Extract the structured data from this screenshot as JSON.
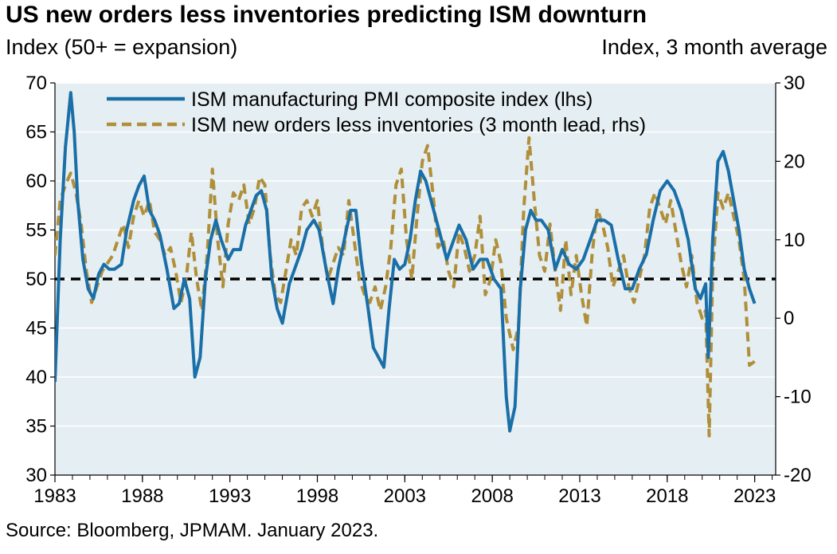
{
  "title": "US new orders less inventories predicting ISM downturn",
  "subtitle_left": "Index (50+ = expansion)",
  "subtitle_right": "Index, 3 month average",
  "source": "Source: Bloomberg, JPMAM. January 2023.",
  "colors": {
    "plot_bg": "#e5eef2",
    "grid": "#ffffff",
    "pmi": "#1a6fa8",
    "noi": "#b08f3a",
    "ref": "#000000"
  },
  "chart_data": {
    "type": "line",
    "x_start_year": 1983,
    "x_end_year": 2023,
    "xlim": [
      1983,
      2024.2
    ],
    "x_ticks": [
      "1983",
      "1988",
      "1993",
      "1998",
      "2003",
      "2008",
      "2013",
      "2018",
      "2023"
    ],
    "ylim_left": [
      30,
      70
    ],
    "y_ticks_left": [
      "30",
      "35",
      "40",
      "45",
      "50",
      "55",
      "60",
      "65",
      "70"
    ],
    "ylim_right": [
      -20,
      30
    ],
    "y_ticks_right": [
      "-20",
      "-10",
      "0",
      "10",
      "20",
      "30"
    ],
    "grid": true,
    "legend": "top",
    "reference_line": {
      "axis": "left",
      "value": 50,
      "style": "dashed"
    },
    "series": [
      {
        "name": "ISM manufacturing PMI composite index (lhs)",
        "axis": "left",
        "style": "solid",
        "x": [
          1983.0,
          1983.3,
          1983.6,
          1983.9,
          1984.1,
          1984.3,
          1984.6,
          1984.9,
          1985.2,
          1985.5,
          1985.8,
          1986.1,
          1986.4,
          1986.8,
          1987.1,
          1987.5,
          1987.8,
          1988.1,
          1988.4,
          1988.7,
          1989.0,
          1989.4,
          1989.8,
          1990.1,
          1990.4,
          1990.7,
          1991.0,
          1991.3,
          1991.6,
          1991.9,
          1992.2,
          1992.5,
          1992.9,
          1993.2,
          1993.6,
          1993.9,
          1994.2,
          1994.5,
          1994.8,
          1995.1,
          1995.4,
          1995.7,
          1996.0,
          1996.4,
          1996.8,
          1997.1,
          1997.4,
          1997.8,
          1998.1,
          1998.5,
          1998.9,
          1999.2,
          1999.6,
          1999.9,
          2000.2,
          2000.5,
          2000.9,
          2001.2,
          2001.5,
          2001.8,
          2002.1,
          2002.4,
          2002.7,
          2003.0,
          2003.3,
          2003.6,
          2003.9,
          2004.2,
          2004.5,
          2004.8,
          2005.1,
          2005.4,
          2005.8,
          2006.1,
          2006.5,
          2006.9,
          2007.3,
          2007.7,
          2008.1,
          2008.5,
          2008.8,
          2009.0,
          2009.3,
          2009.6,
          2009.9,
          2010.2,
          2010.5,
          2010.8,
          2011.2,
          2011.6,
          2012.0,
          2012.4,
          2012.8,
          2013.2,
          2013.6,
          2014.0,
          2014.4,
          2014.8,
          2015.2,
          2015.6,
          2016.0,
          2016.4,
          2016.8,
          2017.2,
          2017.6,
          2018.0,
          2018.4,
          2018.8,
          2019.2,
          2019.6,
          2019.9,
          2020.2,
          2020.35,
          2020.6,
          2020.9,
          2021.2,
          2021.5,
          2021.8,
          2022.1,
          2022.4,
          2022.7,
          2023.0
        ],
        "y": [
          39.5,
          54,
          63.5,
          69,
          65,
          58,
          52,
          49,
          48,
          50.5,
          51.5,
          51,
          51,
          51.5,
          55,
          58,
          59.5,
          60.5,
          57,
          56,
          54.5,
          51,
          47,
          47.5,
          50,
          48,
          40,
          42,
          50,
          54,
          56,
          54,
          52,
          53,
          53,
          55.5,
          57,
          58.5,
          59,
          57,
          50,
          47,
          45.5,
          49.5,
          51.5,
          53,
          55,
          56,
          55,
          51,
          47.5,
          51,
          54.5,
          57,
          57,
          52,
          47,
          43,
          42,
          41,
          47,
          52,
          51,
          51.5,
          54,
          58,
          61,
          60,
          58,
          56,
          54,
          52,
          54,
          55.5,
          54,
          51,
          52,
          52,
          50,
          49,
          38,
          34.5,
          37,
          49,
          55,
          57,
          56,
          56,
          55,
          51,
          53,
          51.5,
          51,
          52,
          54,
          56,
          56,
          55.5,
          52,
          49,
          49,
          51,
          52.5,
          56,
          59,
          60,
          59,
          57,
          54,
          49,
          48,
          49.5,
          42,
          54,
          62,
          63,
          61,
          58,
          55,
          51,
          49,
          47.5
        ],
        "color_key": "pmi"
      },
      {
        "name": "ISM new orders less inventories (3 month lead, rhs)",
        "axis": "right",
        "style": "dashed",
        "x": [
          1983.0,
          1983.3,
          1983.6,
          1983.9,
          1984.2,
          1984.5,
          1984.8,
          1985.1,
          1985.4,
          1985.7,
          1986.0,
          1986.3,
          1986.6,
          1986.9,
          1987.2,
          1987.5,
          1987.8,
          1988.1,
          1988.4,
          1988.7,
          1989.0,
          1989.3,
          1989.6,
          1989.9,
          1990.2,
          1990.5,
          1990.8,
          1991.1,
          1991.4,
          1991.7,
          1992.0,
          1992.3,
          1992.6,
          1992.9,
          1993.2,
          1993.5,
          1993.8,
          1994.1,
          1994.4,
          1994.7,
          1995.0,
          1995.3,
          1995.6,
          1995.9,
          1996.2,
          1996.5,
          1996.8,
          1997.1,
          1997.4,
          1997.7,
          1998.0,
          1998.3,
          1998.6,
          1998.9,
          1999.2,
          1999.5,
          1999.8,
          2000.1,
          2000.4,
          2000.7,
          2001.0,
          2001.3,
          2001.6,
          2001.9,
          2002.2,
          2002.5,
          2002.8,
          2003.1,
          2003.4,
          2003.7,
          2004.0,
          2004.3,
          2004.6,
          2004.9,
          2005.2,
          2005.5,
          2005.8,
          2006.1,
          2006.4,
          2006.7,
          2007.0,
          2007.3,
          2007.6,
          2007.9,
          2008.2,
          2008.5,
          2008.8,
          2009.0,
          2009.2,
          2009.5,
          2009.8,
          2010.1,
          2010.4,
          2010.7,
          2011.0,
          2011.3,
          2011.6,
          2011.9,
          2012.2,
          2012.5,
          2012.8,
          2013.1,
          2013.4,
          2013.7,
          2014.0,
          2014.3,
          2014.6,
          2014.9,
          2015.2,
          2015.5,
          2015.8,
          2016.1,
          2016.4,
          2016.7,
          2017.0,
          2017.3,
          2017.6,
          2017.9,
          2018.2,
          2018.5,
          2018.8,
          2019.1,
          2019.4,
          2019.7,
          2020.0,
          2020.2,
          2020.4,
          2020.6,
          2020.9,
          2021.2,
          2021.5,
          2021.8,
          2022.1,
          2022.4,
          2022.7,
          2023.0
        ],
        "y": [
          8,
          15,
          17,
          18.5,
          16,
          12,
          6,
          2,
          4,
          6,
          7,
          8,
          10,
          12,
          9,
          13,
          15,
          13,
          15,
          11,
          10,
          8,
          9,
          6,
          2,
          5,
          11,
          5,
          1,
          8,
          19,
          10,
          4,
          12,
          16,
          15,
          17,
          12,
          14,
          18,
          17,
          8,
          3,
          2,
          6,
          10,
          8,
          14,
          15,
          13,
          15,
          9,
          5,
          7,
          9,
          8,
          15,
          10,
          5,
          3,
          2,
          4,
          1,
          4,
          9,
          17,
          19,
          10,
          5,
          13,
          20,
          22,
          16,
          9,
          10,
          6,
          4,
          11,
          9,
          6,
          8,
          13,
          3,
          5,
          10,
          7,
          0,
          -2,
          -4,
          -1,
          14,
          23,
          15,
          8,
          6,
          12,
          6,
          1,
          10,
          3,
          8,
          3,
          -1,
          8,
          14,
          12,
          9,
          4,
          6,
          8,
          4,
          2,
          5,
          8,
          14,
          16,
          14,
          12,
          15,
          11,
          7,
          4,
          8,
          2,
          0,
          1,
          -15,
          6,
          16,
          14,
          16,
          13,
          10,
          5,
          -6,
          -5.5
        ],
        "color_key": "noi"
      }
    ]
  }
}
